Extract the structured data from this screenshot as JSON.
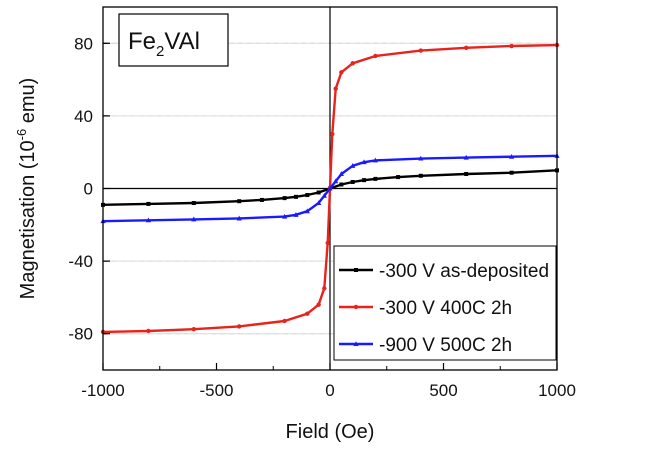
{
  "chart_data": {
    "type": "line",
    "xlabel": "Field (Oe)",
    "ylabel_main": "Magnetisation (10",
    "ylabel_exp": "-6",
    "ylabel_tail": " emu)",
    "xlim": [
      -1000,
      1000
    ],
    "ylim": [
      -100,
      100
    ],
    "x_ticks": [
      -1000,
      -500,
      0,
      500,
      1000
    ],
    "y_ticks": [
      -80,
      -40,
      0,
      40,
      80
    ],
    "x_tick_labels": [
      "-1000",
      "-500",
      "0",
      "500",
      "1000"
    ],
    "y_tick_labels": [
      "-80",
      "-40",
      "0",
      "40",
      "80"
    ],
    "grid": "horizontal minor dashed",
    "legend_position": "bottom-right",
    "inset_label": {
      "base": "Fe",
      "sub": "2",
      "tail": "VAl"
    },
    "series": [
      {
        "name": "-300 V as-deposited",
        "color": "#000000",
        "marker": "square",
        "x": [
          -1000,
          -800,
          -600,
          -400,
          -300,
          -200,
          -150,
          -100,
          -50,
          0,
          50,
          100,
          150,
          200,
          300,
          400,
          600,
          800,
          1000
        ],
        "y": [
          -9,
          -8.5,
          -8,
          -7,
          -6.3,
          -5.3,
          -4.6,
          -3.6,
          -2.2,
          0,
          2.2,
          3.6,
          4.6,
          5.3,
          6.3,
          7,
          8,
          8.7,
          10
        ]
      },
      {
        "name": "-300 V 400C 2h",
        "color": "#e8231c",
        "marker": "circle",
        "x": [
          -1000,
          -800,
          -600,
          -400,
          -200,
          -100,
          -50,
          -25,
          -10,
          0,
          10,
          25,
          50,
          100,
          200,
          400,
          600,
          800,
          1000
        ],
        "y": [
          -79,
          -78.5,
          -77.5,
          -76,
          -73,
          -69,
          -64,
          -55,
          -30,
          0,
          30,
          55,
          64,
          69,
          73,
          76,
          77.5,
          78.5,
          79
        ]
      },
      {
        "name": "-900 V 500C 2h",
        "color": "#1a1aff",
        "marker": "triangle",
        "x": [
          -1000,
          -800,
          -600,
          -400,
          -200,
          -150,
          -100,
          -50,
          -25,
          0,
          25,
          50,
          100,
          150,
          200,
          400,
          600,
          800,
          1000
        ],
        "y": [
          -18,
          -17.5,
          -17,
          -16.5,
          -15.5,
          -14.5,
          -12.5,
          -8,
          -4,
          0,
          4,
          8,
          12.5,
          14.5,
          15.5,
          16.5,
          17,
          17.5,
          18
        ]
      }
    ]
  }
}
